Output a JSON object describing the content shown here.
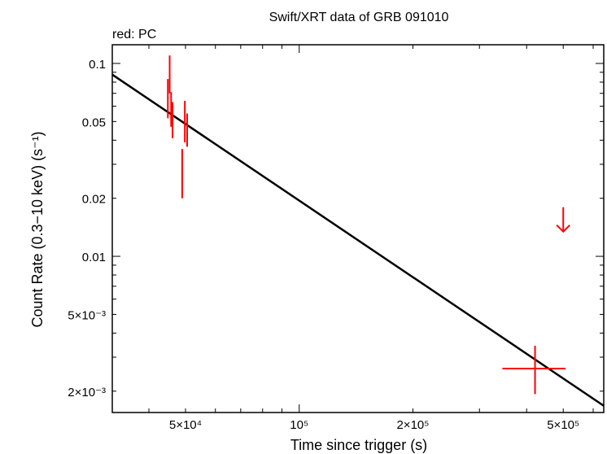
{
  "chart_data": {
    "type": "scatter",
    "title": "Swift/XRT data of GRB 091010",
    "subtitle": "red: PC",
    "xlabel": "Time since trigger (s)",
    "ylabel": "Count Rate (0.3−10 keV) (s⁻¹)",
    "xscale": "log",
    "yscale": "log",
    "xlim": [
      32000,
      640000
    ],
    "ylim": [
      0.00155,
      0.125
    ],
    "x_ticks": [
      {
        "value": 50000,
        "label": "5×10⁴"
      },
      {
        "value": 100000,
        "label": "10⁵"
      },
      {
        "value": 200000,
        "label": "2×10⁵"
      },
      {
        "value": 500000,
        "label": "5×10⁵"
      }
    ],
    "y_ticks": [
      {
        "value": 0.1,
        "label": "0.1"
      },
      {
        "value": 0.05,
        "label": "0.05"
      },
      {
        "value": 0.02,
        "label": "0.02"
      },
      {
        "value": 0.01,
        "label": "0.01"
      },
      {
        "value": 0.005,
        "label": "5×10⁻³"
      },
      {
        "value": 0.002,
        "label": "2×10⁻³"
      }
    ],
    "grid": false,
    "colors": {
      "pc": "#ff0000",
      "model": "#000000"
    },
    "series": [
      {
        "color": "#ff0000",
        "points": [
          {
            "x": 44900,
            "y": 0.066,
            "y_low": 0.052,
            "y_high": 0.083,
            "x_low": 44700,
            "x_high": 45100
          },
          {
            "x": 45400,
            "y": 0.087,
            "y_low": 0.07,
            "y_high": 0.11,
            "x_low": 45300,
            "x_high": 45500
          },
          {
            "x": 45800,
            "y": 0.058,
            "y_low": 0.047,
            "y_high": 0.071,
            "x_low": 45700,
            "x_high": 45900
          },
          {
            "x": 46200,
            "y": 0.051,
            "y_low": 0.041,
            "y_high": 0.063,
            "x_low": 46100,
            "x_high": 46300
          },
          {
            "x": 49000,
            "y": 0.027,
            "y_low": 0.02,
            "y_high": 0.036,
            "x_low": 48900,
            "x_high": 49100
          },
          {
            "x": 49800,
            "y": 0.05,
            "y_low": 0.039,
            "y_high": 0.064,
            "x_low": 49700,
            "x_high": 49900
          },
          {
            "x": 50500,
            "y": 0.045,
            "y_low": 0.037,
            "y_high": 0.055,
            "x_low": 50400,
            "x_high": 50600
          },
          {
            "x": 421000,
            "y": 0.00262,
            "y_low": 0.00193,
            "y_high": 0.00344,
            "x_low": 345000,
            "x_high": 507000
          }
        ],
        "upper_limits": [
          {
            "x": 500000,
            "y": 0.0148
          }
        ]
      }
    ],
    "model_line": {
      "color": "#000000",
      "points": [
        {
          "x": 32000,
          "y": 0.0875
        },
        {
          "x": 640000,
          "y": 0.00168
        }
      ]
    }
  }
}
